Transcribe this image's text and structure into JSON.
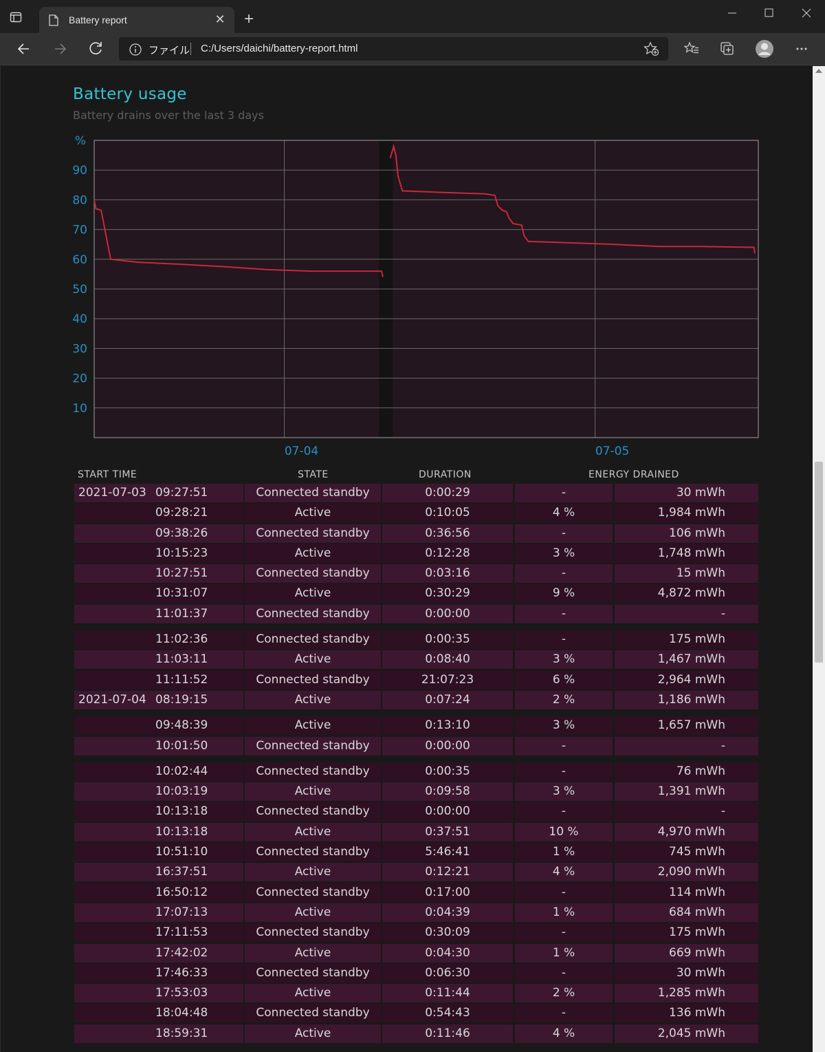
{
  "browser": {
    "tab_title": "Battery report",
    "tab_close": "✕",
    "new_tab": "+",
    "address_scheme": "ファイル",
    "address_url": "C:/Users/daichi/battery-report.html"
  },
  "page": {
    "title": "Battery usage",
    "subtitle": "Battery drains over the last 3 days"
  },
  "chart_data": {
    "type": "line",
    "title": "",
    "ylabel": "%",
    "ylim": [
      0,
      100
    ],
    "yticks": [
      10,
      20,
      30,
      40,
      50,
      60,
      70,
      80,
      90
    ],
    "xticks": [
      "07-04",
      "07-05"
    ],
    "grid": true,
    "color": "#c8283e",
    "segments": [
      [
        [
          0.0,
          80
        ],
        [
          0.4,
          77
        ],
        [
          1.6,
          76.5
        ],
        [
          2.2,
          72
        ],
        [
          3.0,
          66
        ],
        [
          3.8,
          60
        ],
        [
          10,
          59
        ],
        [
          20,
          58.3
        ],
        [
          30,
          57.5
        ],
        [
          40,
          56.5
        ],
        [
          50,
          56
        ],
        [
          60,
          56
        ],
        [
          66.2,
          56
        ],
        [
          66.5,
          54
        ]
      ],
      [
        [
          68.2,
          94
        ],
        [
          69.0,
          98
        ],
        [
          69.5,
          95
        ],
        [
          70.0,
          88
        ],
        [
          71.0,
          83
        ],
        [
          80,
          82.5
        ],
        [
          90,
          82
        ],
        [
          92.3,
          81.5
        ],
        [
          93.0,
          78
        ],
        [
          94.0,
          76.5
        ],
        [
          95.0,
          76
        ],
        [
          95.5,
          74
        ],
        [
          96.5,
          72
        ],
        [
          98.5,
          71.5
        ],
        [
          99.0,
          68
        ],
        [
          100.0,
          66
        ],
        [
          110,
          65.5
        ],
        [
          120,
          65
        ],
        [
          130,
          64.3
        ],
        [
          140,
          64.3
        ],
        [
          152,
          64
        ],
        [
          152.2,
          62
        ]
      ]
    ]
  },
  "table": {
    "headers": [
      "START TIME",
      "STATE",
      "DURATION",
      "ENERGY DRAINED"
    ],
    "rows": [
      {
        "date": "2021-07-03",
        "time": "09:27:51",
        "state": "Connected standby",
        "duration": "0:00:29",
        "pct": "-",
        "energy": "30 mWh"
      },
      {
        "date": "",
        "time": "09:28:21",
        "state": "Active",
        "duration": "0:10:05",
        "pct": "4 %",
        "energy": "1,984 mWh"
      },
      {
        "date": "",
        "time": "09:38:26",
        "state": "Connected standby",
        "duration": "0:36:56",
        "pct": "-",
        "energy": "106 mWh"
      },
      {
        "date": "",
        "time": "10:15:23",
        "state": "Active",
        "duration": "0:12:28",
        "pct": "3 %",
        "energy": "1,748 mWh"
      },
      {
        "date": "",
        "time": "10:27:51",
        "state": "Connected standby",
        "duration": "0:03:16",
        "pct": "-",
        "energy": "15 mWh"
      },
      {
        "date": "",
        "time": "10:31:07",
        "state": "Active",
        "duration": "0:30:29",
        "pct": "9 %",
        "energy": "4,872 mWh"
      },
      {
        "date": "",
        "time": "11:01:37",
        "state": "Connected standby",
        "duration": "0:00:00",
        "pct": "-",
        "energy": "-"
      },
      {
        "date": "",
        "time": "11:02:36",
        "state": "Connected standby",
        "duration": "0:00:35",
        "pct": "-",
        "energy": "175 mWh",
        "gap": true
      },
      {
        "date": "",
        "time": "11:03:11",
        "state": "Active",
        "duration": "0:08:40",
        "pct": "3 %",
        "energy": "1,467 mWh"
      },
      {
        "date": "",
        "time": "11:11:52",
        "state": "Connected standby",
        "duration": "21:07:23",
        "pct": "6 %",
        "energy": "2,964 mWh"
      },
      {
        "date": "2021-07-04",
        "time": "08:19:15",
        "state": "Active",
        "duration": "0:07:24",
        "pct": "2 %",
        "energy": "1,186 mWh"
      },
      {
        "date": "",
        "time": "09:48:39",
        "state": "Active",
        "duration": "0:13:10",
        "pct": "3 %",
        "energy": "1,657 mWh",
        "gap": true
      },
      {
        "date": "",
        "time": "10:01:50",
        "state": "Connected standby",
        "duration": "0:00:00",
        "pct": "-",
        "energy": "-"
      },
      {
        "date": "",
        "time": "10:02:44",
        "state": "Connected standby",
        "duration": "0:00:35",
        "pct": "-",
        "energy": "76 mWh",
        "gap": true
      },
      {
        "date": "",
        "time": "10:03:19",
        "state": "Active",
        "duration": "0:09:58",
        "pct": "3 %",
        "energy": "1,391 mWh"
      },
      {
        "date": "",
        "time": "10:13:18",
        "state": "Connected standby",
        "duration": "0:00:00",
        "pct": "-",
        "energy": "-"
      },
      {
        "date": "",
        "time": "10:13:18",
        "state": "Active",
        "duration": "0:37:51",
        "pct": "10 %",
        "energy": "4,970 mWh"
      },
      {
        "date": "",
        "time": "10:51:10",
        "state": "Connected standby",
        "duration": "5:46:41",
        "pct": "1 %",
        "energy": "745 mWh"
      },
      {
        "date": "",
        "time": "16:37:51",
        "state": "Active",
        "duration": "0:12:21",
        "pct": "4 %",
        "energy": "2,090 mWh"
      },
      {
        "date": "",
        "time": "16:50:12",
        "state": "Connected standby",
        "duration": "0:17:00",
        "pct": "-",
        "energy": "114 mWh"
      },
      {
        "date": "",
        "time": "17:07:13",
        "state": "Active",
        "duration": "0:04:39",
        "pct": "1 %",
        "energy": "684 mWh"
      },
      {
        "date": "",
        "time": "17:11:53",
        "state": "Connected standby",
        "duration": "0:30:09",
        "pct": "-",
        "energy": "175 mWh"
      },
      {
        "date": "",
        "time": "17:42:02",
        "state": "Active",
        "duration": "0:04:30",
        "pct": "1 %",
        "energy": "669 mWh"
      },
      {
        "date": "",
        "time": "17:46:33",
        "state": "Connected standby",
        "duration": "0:06:30",
        "pct": "-",
        "energy": "30 mWh"
      },
      {
        "date": "",
        "time": "17:53:03",
        "state": "Active",
        "duration": "0:11:44",
        "pct": "2 %",
        "energy": "1,285 mWh"
      },
      {
        "date": "",
        "time": "18:04:48",
        "state": "Connected standby",
        "duration": "0:54:43",
        "pct": "-",
        "energy": "136 mWh"
      },
      {
        "date": "",
        "time": "18:59:31",
        "state": "Active",
        "duration": "0:11:46",
        "pct": "4 %",
        "energy": "2,045 mWh"
      }
    ]
  }
}
